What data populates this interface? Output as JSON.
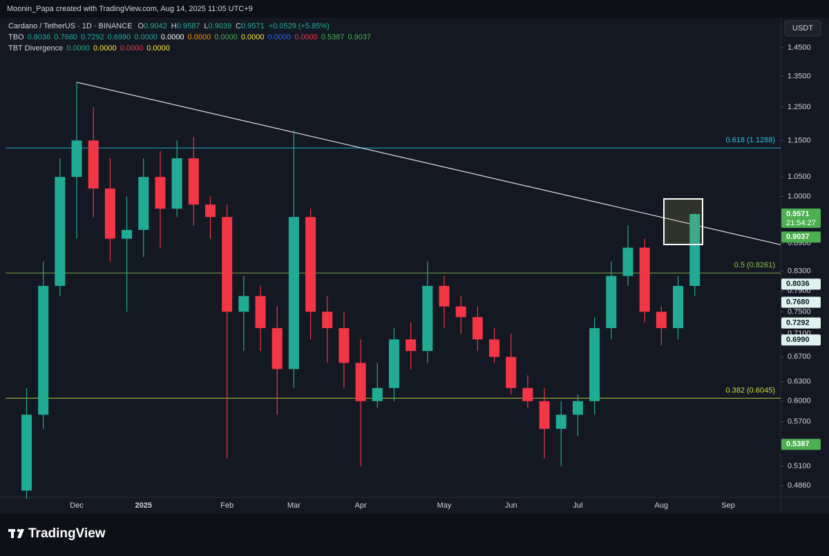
{
  "header": {
    "attribution": "Moonin_Papa created with TradingView.com, Aug 14, 2025 11:05 UTC+9",
    "symbol": "Cardano / TetherUS · 1D · BINANCE",
    "ohlc": [
      {
        "label": "O",
        "value": "0.9042"
      },
      {
        "label": "H",
        "value": "0.9587"
      },
      {
        "label": "L",
        "value": "0.9039"
      },
      {
        "label": "C",
        "value": "0.9571"
      }
    ],
    "change": "+0.0529 (+5.85%)",
    "change_color": "#22ab94",
    "indicators": [
      {
        "name": "TBO",
        "values": [
          {
            "text": "0.8036",
            "color": "#22ab94"
          },
          {
            "text": "0.7680",
            "color": "#22ab94"
          },
          {
            "text": "0.7292",
            "color": "#22ab94"
          },
          {
            "text": "0.6990",
            "color": "#22ab94"
          },
          {
            "text": "0.0000",
            "color": "#22ab94"
          },
          {
            "text": "0.0000",
            "color": "#ffffff"
          },
          {
            "text": "0.0000",
            "color": "#ff9800"
          },
          {
            "text": "0.0000",
            "color": "#4caf50"
          },
          {
            "text": "0.0000",
            "color": "#ffeb3b"
          },
          {
            "text": "0.0000",
            "color": "#2962ff"
          },
          {
            "text": "0.0000",
            "color": "#f23645"
          },
          {
            "text": "0.5387",
            "color": "#4caf50"
          },
          {
            "text": "0.9037",
            "color": "#4caf50"
          }
        ]
      },
      {
        "name": "TBT Divergence",
        "values": [
          {
            "text": "0.0000",
            "color": "#22ab94"
          },
          {
            "text": "0.0000",
            "color": "#ffeb3b"
          },
          {
            "text": "0.0000",
            "color": "#f23645"
          },
          {
            "text": "0.0000",
            "color": "#ffeb3b"
          }
        ]
      }
    ]
  },
  "currency_button": "USDT",
  "brand": "TradingView",
  "chart_data": {
    "type": "candlestick",
    "log_scale": true,
    "up_color": "#22ab94",
    "down_color": "#f23645",
    "categories": [
      null,
      null,
      null,
      "Dec",
      null,
      null,
      null,
      "2025",
      null,
      null,
      null,
      null,
      "Feb",
      null,
      null,
      null,
      "Mar",
      null,
      null,
      null,
      "Apr",
      null,
      null,
      null,
      null,
      "May",
      null,
      null,
      null,
      "Jun",
      null,
      null,
      null,
      "Jul",
      null,
      null,
      null,
      null,
      "Aug",
      null,
      null,
      null,
      "Sep",
      null
    ],
    "open": [
      0.48,
      0.58,
      0.8,
      1.05,
      1.15,
      1.02,
      0.9,
      0.92,
      1.05,
      0.97,
      1.1,
      0.98,
      0.95,
      0.75,
      0.78,
      0.72,
      0.65,
      0.95,
      0.75,
      0.72,
      0.66,
      0.6,
      0.62,
      0.7,
      0.68,
      0.8,
      0.76,
      0.74,
      0.7,
      0.67,
      0.62,
      0.6,
      0.56,
      0.58,
      0.6,
      0.72,
      0.82,
      0.88,
      0.75,
      0.72,
      0.8,
      null,
      null,
      null
    ],
    "high": [
      0.62,
      0.85,
      1.1,
      1.33,
      1.25,
      1.1,
      1.0,
      1.1,
      1.12,
      1.15,
      1.16,
      1.0,
      0.98,
      0.82,
      0.8,
      0.76,
      1.18,
      0.97,
      0.78,
      0.75,
      0.7,
      0.66,
      0.72,
      0.73,
      0.85,
      0.82,
      0.78,
      0.76,
      0.72,
      0.71,
      0.64,
      0.62,
      0.6,
      0.61,
      0.74,
      0.85,
      0.93,
      0.9,
      0.76,
      0.82,
      0.9587,
      null,
      null,
      null
    ],
    "low": [
      0.47,
      0.56,
      0.78,
      0.9,
      0.95,
      0.85,
      0.75,
      0.86,
      0.88,
      0.95,
      0.93,
      0.9,
      0.52,
      0.68,
      0.68,
      0.58,
      0.62,
      0.7,
      0.66,
      0.62,
      0.51,
      0.59,
      0.6,
      0.65,
      0.66,
      0.72,
      0.71,
      0.68,
      0.66,
      0.61,
      0.59,
      0.52,
      0.51,
      0.55,
      0.58,
      0.7,
      0.8,
      0.73,
      0.69,
      0.7,
      0.78,
      null,
      null,
      null
    ],
    "close": [
      0.58,
      0.8,
      1.05,
      1.15,
      1.02,
      0.9,
      0.92,
      1.05,
      0.97,
      1.1,
      0.98,
      0.95,
      0.75,
      0.78,
      0.72,
      0.65,
      0.95,
      0.75,
      0.72,
      0.66,
      0.6,
      0.62,
      0.7,
      0.68,
      0.8,
      0.76,
      0.74,
      0.7,
      0.67,
      0.62,
      0.6,
      0.56,
      0.58,
      0.6,
      0.72,
      0.82,
      0.88,
      0.75,
      0.72,
      0.8,
      0.9571,
      null,
      null,
      null
    ],
    "ylim": [
      0.472,
      1.556
    ],
    "yticks": [
      {
        "value": 1.45,
        "label": "1.4500"
      },
      {
        "value": 1.35,
        "label": "1.3500"
      },
      {
        "value": 1.25,
        "label": "1.2500"
      },
      {
        "value": 1.15,
        "label": "1.1500"
      },
      {
        "value": 1.05,
        "label": "1.0500"
      },
      {
        "value": 1,
        "label": "1.0000"
      },
      {
        "value": 0.89,
        "label": "0.8900"
      },
      {
        "value": 0.83,
        "label": "0.8300"
      },
      {
        "value": 0.79,
        "label": "0.7900"
      },
      {
        "value": 0.75,
        "label": "0.7500"
      },
      {
        "value": 0.71,
        "label": "0.7100"
      },
      {
        "value": 0.67,
        "label": "0.6700"
      },
      {
        "value": 0.63,
        "label": "0.6300"
      },
      {
        "value": 0.6,
        "label": "0.6000"
      },
      {
        "value": 0.57,
        "label": "0.5700"
      },
      {
        "value": 0.51,
        "label": "0.5100"
      },
      {
        "value": 0.486,
        "label": "0.4860"
      }
    ],
    "fib_levels": [
      {
        "value": 1.1288,
        "label": "0.618 (1.1288)",
        "color": "#26c6da"
      },
      {
        "value": 0.8261,
        "label": "0.5 (0.8261)",
        "color": "#8bc34a"
      },
      {
        "value": 0.6045,
        "label": "0.382 (0.6045)",
        "color": "#cddc39"
      }
    ],
    "trendline": {
      "x": [
        3,
        43
      ],
      "y": [
        1.33,
        0.905
      ]
    },
    "price_tags": [
      {
        "value": 0.9571,
        "label": "0.9571",
        "color": "#4caf50"
      },
      {
        "value": 0.9037,
        "label": "0.9037",
        "color": "#4caf50"
      },
      {
        "value": 0.8036,
        "label": "0.8036",
        "color": "#dff3f1"
      },
      {
        "value": 0.768,
        "label": "0.7680",
        "color": "#dff3f1"
      },
      {
        "value": 0.7292,
        "label": "0.7292",
        "color": "#dff3f1"
      },
      {
        "value": 0.699,
        "label": "0.6990",
        "color": "#dff3f1"
      },
      {
        "value": 0.5387,
        "label": "0.5387",
        "color": "#4caf50"
      }
    ],
    "countdown": "21:54:27"
  }
}
